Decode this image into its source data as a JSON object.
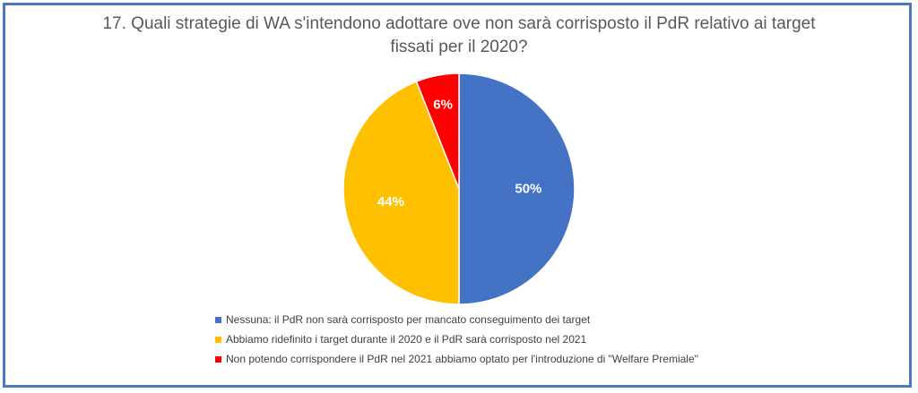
{
  "chart_data": {
    "type": "pie",
    "title": "17. Quali strategie di WA s'intendono adottare ove non sarà corrisposto il PdR relativo ai target fissati per il 2020?",
    "title_lines": [
      "17. Quali strategie di WA s'intendono adottare ove non sarà corrisposto  il PdR relativo ai target",
      "fissati per il 2020?"
    ],
    "legend_position": "bottom",
    "slices": [
      {
        "label": "Nessuna: il PdR non sarà corrisposto per mancato conseguimento dei target",
        "value": 50,
        "display": "50%",
        "color": "#4472c4"
      },
      {
        "label": "Abbiamo ridefinito i target durante il 2020 e il PdR sarà corrisposto nel 2021",
        "value": 44,
        "display": "44%",
        "color": "#ffc000"
      },
      {
        "label": "Non potendo corrispondere il PdR nel 2021 abbiamo optato per l'introduzione di \"Welfare Premiale\"",
        "value": 6,
        "display": "6%",
        "color": "#ff0000"
      }
    ]
  }
}
